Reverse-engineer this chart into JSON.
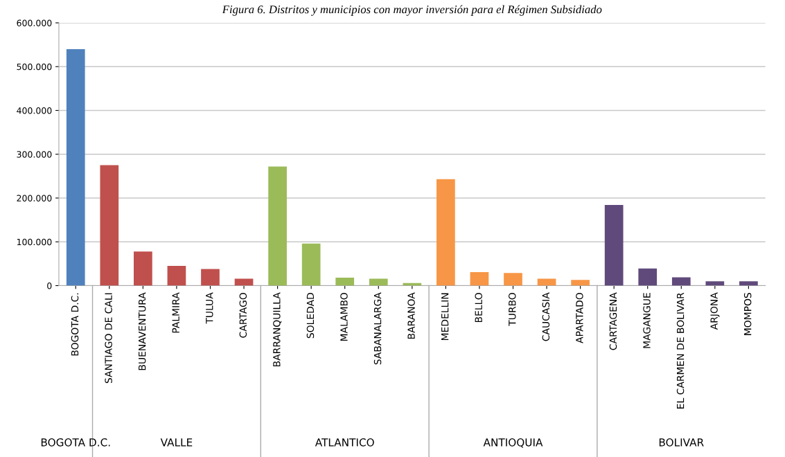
{
  "chart_data": {
    "type": "bar",
    "title": "Figura 6. Distritos y municipios con mayor inversión para el Régimen Subsidiado",
    "categories": [
      "BOGOTA D.C.",
      "SANTIAGO DE CALI",
      "BUENAVENTURA",
      "PALMIRA",
      "TULUA",
      "CARTAGO",
      "BARRANQUILLA",
      "SOLEDAD",
      "MALAMBO",
      "SABANALARGA",
      "BARANOA",
      "MEDELLIN",
      "BELLO",
      "TURBO",
      "CAUCASIA",
      "APARTADO",
      "CARTAGENA",
      "MAGANGUE",
      "EL CARMEN DE BOLIVAR",
      "ARJONA",
      "MOMPOS"
    ],
    "values": [
      540000,
      275000,
      78000,
      45000,
      38000,
      16000,
      272000,
      96000,
      18000,
      16000,
      6000,
      243000,
      31000,
      29000,
      16000,
      13000,
      184000,
      39000,
      19000,
      10000,
      10000
    ],
    "colors": [
      "#4f81bd",
      "#c0504d",
      "#c0504d",
      "#c0504d",
      "#c0504d",
      "#c0504d",
      "#9bbb59",
      "#9bbb59",
      "#9bbb59",
      "#9bbb59",
      "#9bbb59",
      "#f79646",
      "#f79646",
      "#f79646",
      "#f79646",
      "#f79646",
      "#604a7b",
      "#604a7b",
      "#604a7b",
      "#604a7b",
      "#604a7b"
    ],
    "ylim": [
      0,
      600000
    ],
    "yticks": [
      0,
      {
        "value": 100000,
        "label": "100.000"
      },
      {
        "value": 200000,
        "label": "200.000"
      },
      {
        "value": 300000,
        "label": "300.000"
      },
      {
        "value": 400000,
        "label": "400.000"
      },
      {
        "value": 500000,
        "label": "500.000"
      },
      {
        "value": 600000,
        "label": "600.000"
      }
    ],
    "grid": "y",
    "annotations": [
      "BOGOTA D.C.",
      "VALLE",
      "ATLANTICO",
      "ANTIOQUIA",
      "BOLIVAR"
    ]
  }
}
